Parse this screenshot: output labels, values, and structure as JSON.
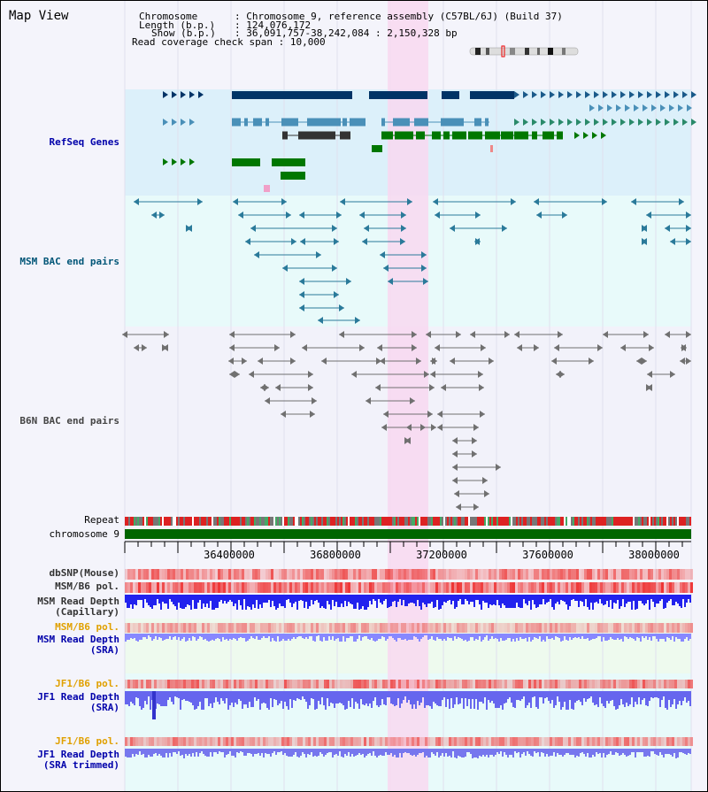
{
  "title": "Map View",
  "header": {
    "chromosome_key": "Chromosome",
    "chromosome_val": "Chromosome 9, reference assembly (C57BL/6J) (Build 37)",
    "length_key": "Length (b.p.)",
    "length_val": "124,076,172",
    "show_key": "Show (b.p.)",
    "show_val": "36,091,757-38,242,084 : 2,150,328 bp",
    "span_key": "Read coverage check span",
    "span_val": "10,000"
  },
  "tracks": {
    "refseq": "RefSeq Genes",
    "msm_bac": "MSM BAC end pairs",
    "b6n_bac": "B6N BAC end pairs",
    "repeat": "Repeat",
    "chromosome": "chromosome 9",
    "dbsnp": "dbSNP(Mouse)",
    "msm_pol1": "MSM/B6 pol.",
    "msm_depth_cap_1": "MSM Read Depth",
    "msm_depth_cap_2": "(Capillary)",
    "msm_pol2": "MSM/B6 pol.",
    "msm_depth_sra_1": "MSM Read Depth",
    "msm_depth_sra_2": "(SRA)",
    "jf1_pol1": "JF1/B6 pol.",
    "jf1_depth_sra_1": "JF1 Read Depth",
    "jf1_depth_sra_2": "(SRA)",
    "jf1_pol2": "JF1/B6 pol.",
    "jf1_depth_trim_1": "JF1 Read Depth",
    "jf1_depth_trim_2": "(SRA trimmed)"
  },
  "ruler": {
    "ticks": [
      "36400000",
      "36800000",
      "37200000",
      "37600000",
      "38000000"
    ]
  },
  "colors": {
    "refseq_bg": "#dcf0fa",
    "bac_bg": "#e8fafa",
    "highlight": "#f8d8f0",
    "gene_navy": "#003366",
    "gene_blue": "#4a90b8",
    "gene_green": "#007700",
    "chromosome_bar": "#006600",
    "depth_blue": "#2222ee"
  }
}
